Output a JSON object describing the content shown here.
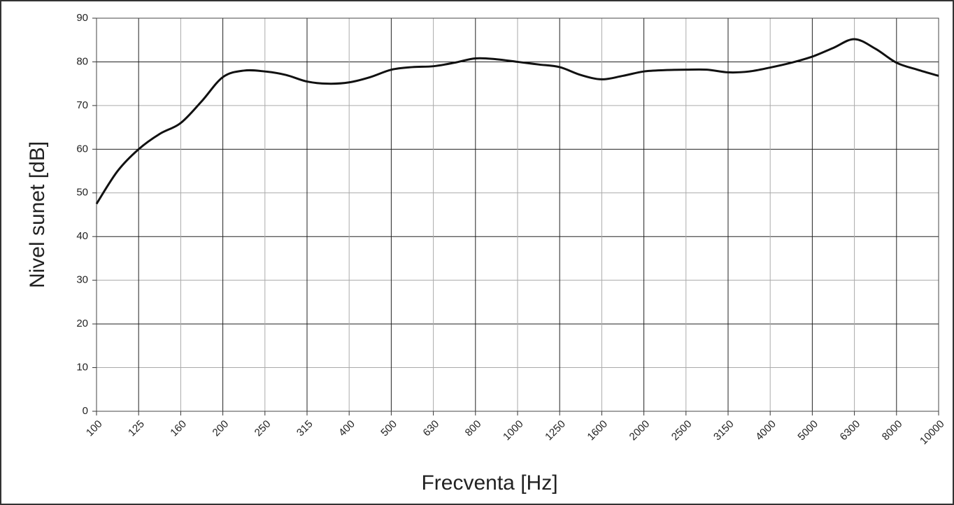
{
  "chart_data": {
    "type": "line",
    "y_label": "Nivel sunet [dB]",
    "x_label": "Frecventa [Hz]",
    "categories": [
      "100",
      null,
      "125",
      null,
      "160",
      null,
      "200",
      null,
      "250",
      null,
      "315",
      null,
      "400",
      null,
      "500",
      null,
      "630",
      null,
      "800",
      null,
      "1000",
      null,
      "1250",
      null,
      "1600",
      null,
      "2000",
      null,
      "2500",
      null,
      "3150",
      null,
      "4000",
      null,
      "5000",
      null,
      "6300",
      null,
      "8000",
      null,
      "10000"
    ],
    "series": [
      {
        "name": "Nivel sunet",
        "color": "#111111",
        "values": [
          47.5,
          55,
          60,
          63.5,
          66,
          71,
          76.5,
          78,
          77.8,
          77,
          75.5,
          75,
          75.3,
          76.5,
          78.2,
          78.8,
          79,
          79.8,
          80.8,
          80.6,
          80,
          79.4,
          78.8,
          77,
          76,
          76.8,
          77.8,
          78.1,
          78.2,
          78.2,
          77.6,
          77.8,
          78.7,
          79.8,
          81.2,
          83.2,
          85.2,
          83,
          79.8,
          78.2,
          76.8
        ]
      }
    ],
    "ylim": [
      0,
      90
    ],
    "yticks": [
      0,
      10,
      20,
      30,
      40,
      50,
      60,
      70,
      80,
      90
    ],
    "grid": true
  }
}
